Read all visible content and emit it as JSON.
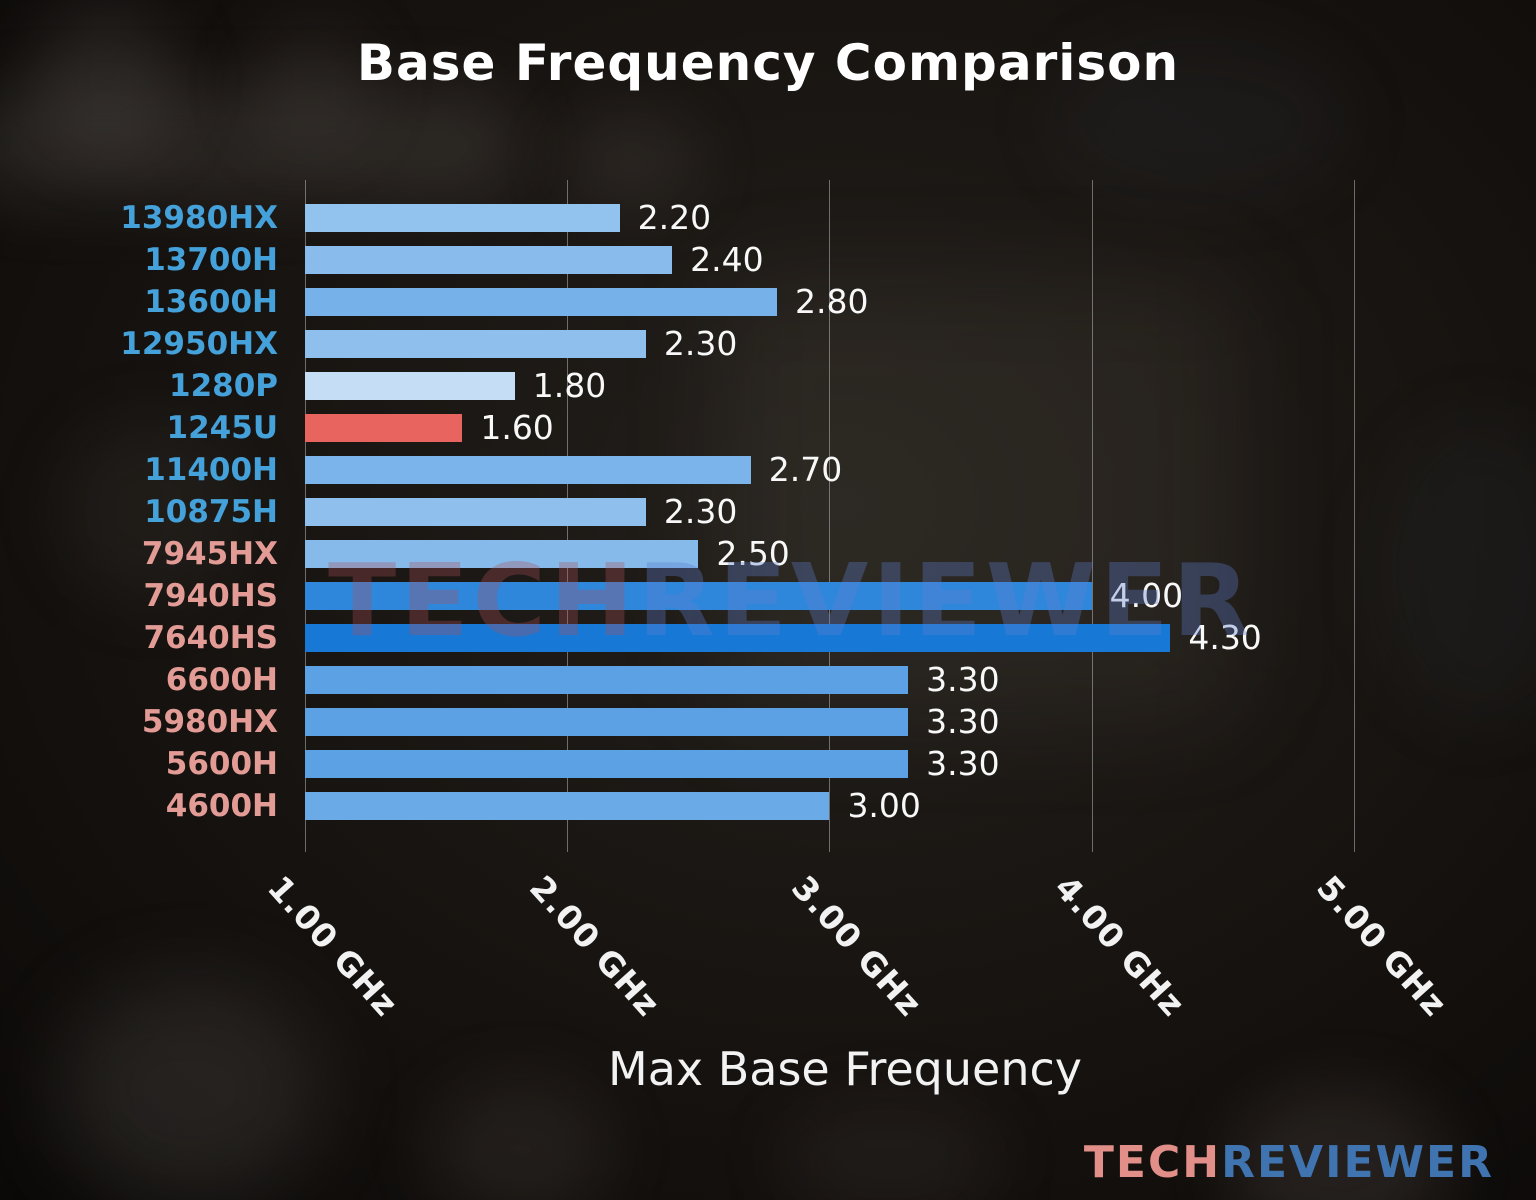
{
  "watermark": {
    "tech": "TECH",
    "reviewer": "REVIEWER"
  },
  "logo": {
    "tech": "TECH",
    "reviewer": "REVIEWER"
  },
  "colors": {
    "intel_label": "#45a1d9",
    "amd_label": "#e39b96",
    "highlight_bar": "#e8645f",
    "gridline": "#c3c3c3",
    "text": "#ffffff"
  },
  "chart_data": {
    "type": "bar",
    "orientation": "horizontal",
    "title": "Base Frequency Comparison",
    "xlabel": "Max Base Frequency",
    "ylabel": "",
    "xlim": [
      1.0,
      5.5
    ],
    "grid": true,
    "legend": false,
    "unit": "GHz",
    "categories": [
      "13980HX",
      "13700H",
      "13600H",
      "12950HX",
      "1280P",
      "1245U",
      "11400H",
      "10875H",
      "7945HX",
      "7940HS",
      "7640HS",
      "6600H",
      "5980HX",
      "5600H",
      "4600H"
    ],
    "values": [
      2.2,
      2.4,
      2.8,
      2.3,
      1.8,
      1.6,
      2.7,
      2.3,
      2.5,
      4.0,
      4.3,
      3.3,
      3.3,
      3.3,
      3.0
    ],
    "value_labels": [
      "2.20",
      "2.40",
      "2.80",
      "2.30",
      "1.80",
      "1.60",
      "2.70",
      "2.30",
      "2.50",
      "4.00",
      "4.30",
      "3.30",
      "3.30",
      "3.30",
      "3.00"
    ],
    "bar_colors": [
      "#92c2ee",
      "#89bcec",
      "#76b1e9",
      "#8ebfed",
      "#c6ddf6",
      "#e8645f",
      "#7ab4ea",
      "#8ebfed",
      "#85baeb",
      "#2f87dc",
      "#1878d6",
      "#5ca1e3",
      "#5ca1e3",
      "#5ca1e3",
      "#6aaae6"
    ],
    "category_label_colors": [
      "#45a1d9",
      "#45a1d9",
      "#45a1d9",
      "#45a1d9",
      "#45a1d9",
      "#45a1d9",
      "#45a1d9",
      "#45a1d9",
      "#e39b96",
      "#e39b96",
      "#e39b96",
      "#e39b96",
      "#e39b96",
      "#e39b96",
      "#e39b96"
    ],
    "x_ticks": [
      {
        "value": 1.0,
        "label": "1.00 GHz"
      },
      {
        "value": 2.0,
        "label": "2.00 GHz"
      },
      {
        "value": 3.0,
        "label": "3.00 GHz"
      },
      {
        "value": 4.0,
        "label": "4.00 GHz"
      },
      {
        "value": 5.0,
        "label": "5.00 GHz"
      }
    ]
  }
}
